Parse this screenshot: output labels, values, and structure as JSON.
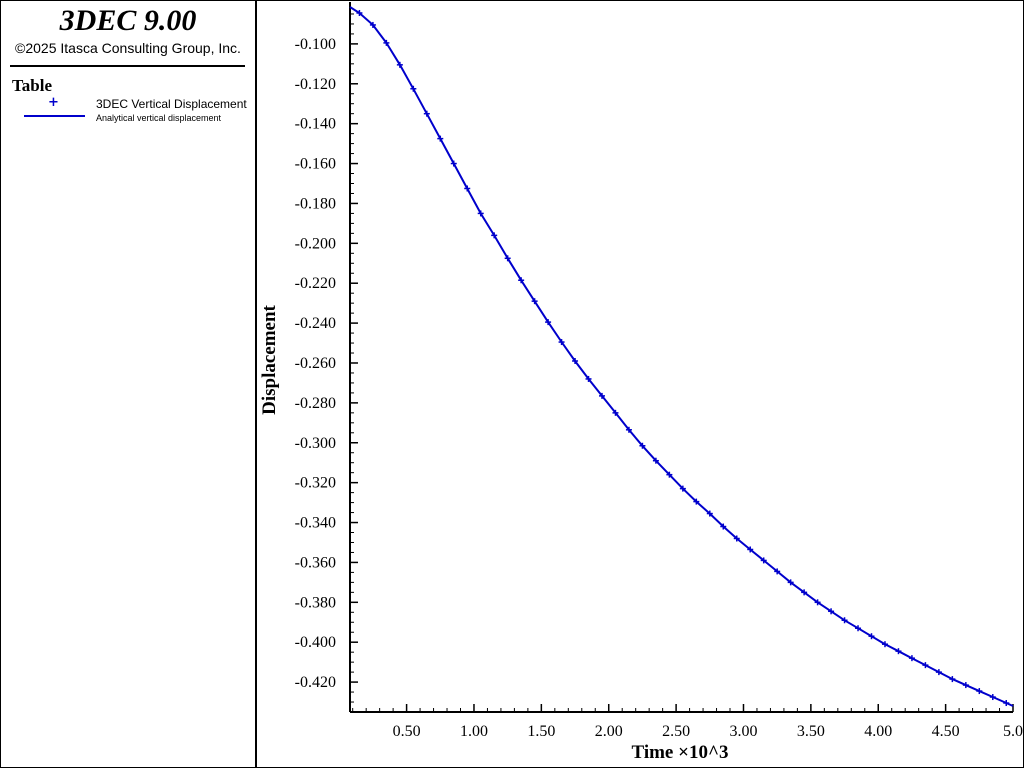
{
  "app": {
    "title": "3DEC 9.00",
    "copyright": "©2025 Itasca Consulting Group, Inc."
  },
  "legend": {
    "heading": "Table",
    "items": [
      {
        "label": "3DEC Vertical Displacement",
        "marker": "+",
        "color": "#0000cc"
      },
      {
        "label": "Analytical vertical displacement",
        "marker": "line",
        "color": "#0000cc"
      }
    ]
  },
  "chart_data": {
    "type": "line",
    "xlabel": "Time ×10^3",
    "ylabel": "Displacement",
    "xlim": [
      0.08,
      5.0
    ],
    "ylim": [
      -0.435,
      -0.081
    ],
    "xticks": [
      0.5,
      1.0,
      1.5,
      2.0,
      2.5,
      3.0,
      3.5,
      4.0,
      4.5,
      5.0
    ],
    "xtick_labels": [
      "0.50",
      "1.00",
      "1.50",
      "2.00",
      "2.50",
      "3.00",
      "3.50",
      "4.00",
      "4.50",
      "5.0"
    ],
    "yticks": [
      -0.1,
      -0.12,
      -0.14,
      -0.16,
      -0.18,
      -0.2,
      -0.22,
      -0.24,
      -0.26,
      -0.28,
      -0.3,
      -0.32,
      -0.34,
      -0.36,
      -0.38,
      -0.4,
      -0.42
    ],
    "ytick_labels": [
      "-0.100",
      "-0.120",
      "-0.140",
      "-0.160",
      "-0.180",
      "-0.200",
      "-0.220",
      "-0.240",
      "-0.260",
      "-0.280",
      "-0.300",
      "-0.320",
      "-0.340",
      "-0.360",
      "-0.380",
      "-0.400",
      "-0.420"
    ],
    "grid": false,
    "legend_position": "left-panel",
    "series": [
      {
        "name": "Analytical vertical displacement",
        "style": "line",
        "color": "#0000cc",
        "x": [
          0.08,
          0.15,
          0.25,
          0.35,
          0.45,
          0.55,
          0.65,
          0.75,
          0.85,
          0.95,
          1.05,
          1.15,
          1.25,
          1.35,
          1.45,
          1.55,
          1.65,
          1.75,
          1.85,
          1.95,
          2.05,
          2.15,
          2.25,
          2.35,
          2.45,
          2.55,
          2.65,
          2.75,
          2.85,
          2.95,
          3.05,
          3.15,
          3.25,
          3.35,
          3.45,
          3.55,
          3.65,
          3.75,
          3.85,
          3.95,
          4.05,
          4.15,
          4.25,
          4.35,
          4.45,
          4.55,
          4.65,
          4.75,
          4.85,
          4.95,
          5.0
        ],
        "y": [
          -0.0815,
          -0.0845,
          -0.0905,
          -0.0995,
          -0.1105,
          -0.1225,
          -0.135,
          -0.1475,
          -0.16,
          -0.1725,
          -0.185,
          -0.196,
          -0.2075,
          -0.2185,
          -0.229,
          -0.2395,
          -0.2495,
          -0.259,
          -0.268,
          -0.2765,
          -0.285,
          -0.2935,
          -0.3015,
          -0.309,
          -0.316,
          -0.323,
          -0.3295,
          -0.3355,
          -0.342,
          -0.348,
          -0.3535,
          -0.359,
          -0.3645,
          -0.37,
          -0.375,
          -0.38,
          -0.3845,
          -0.389,
          -0.393,
          -0.397,
          -0.401,
          -0.4045,
          -0.408,
          -0.4115,
          -0.415,
          -0.4185,
          -0.4215,
          -0.4245,
          -0.4275,
          -0.4305,
          -0.432
        ]
      },
      {
        "name": "3DEC Vertical Displacement",
        "style": "marker",
        "marker": "+",
        "color": "#0000cc",
        "x": [
          0.15,
          0.25,
          0.35,
          0.45,
          0.55,
          0.65,
          0.75,
          0.85,
          0.95,
          1.05,
          1.15,
          1.25,
          1.35,
          1.45,
          1.55,
          1.65,
          1.75,
          1.85,
          1.95,
          2.05,
          2.15,
          2.25,
          2.35,
          2.45,
          2.55,
          2.65,
          2.75,
          2.85,
          2.95,
          3.05,
          3.15,
          3.25,
          3.35,
          3.45,
          3.55,
          3.65,
          3.75,
          3.85,
          3.95,
          4.05,
          4.15,
          4.25,
          4.35,
          4.45,
          4.55,
          4.65,
          4.75,
          4.85,
          4.95
        ],
        "y": [
          -0.0845,
          -0.0905,
          -0.0995,
          -0.1105,
          -0.1225,
          -0.135,
          -0.1475,
          -0.16,
          -0.1725,
          -0.185,
          -0.196,
          -0.2075,
          -0.2185,
          -0.229,
          -0.2395,
          -0.2495,
          -0.259,
          -0.268,
          -0.2765,
          -0.285,
          -0.2935,
          -0.3015,
          -0.309,
          -0.316,
          -0.323,
          -0.3295,
          -0.3355,
          -0.342,
          -0.348,
          -0.3535,
          -0.359,
          -0.3645,
          -0.37,
          -0.375,
          -0.38,
          -0.3845,
          -0.389,
          -0.393,
          -0.397,
          -0.401,
          -0.4045,
          -0.408,
          -0.4115,
          -0.415,
          -0.4185,
          -0.4215,
          -0.4245,
          -0.4275,
          -0.4305
        ]
      }
    ]
  }
}
